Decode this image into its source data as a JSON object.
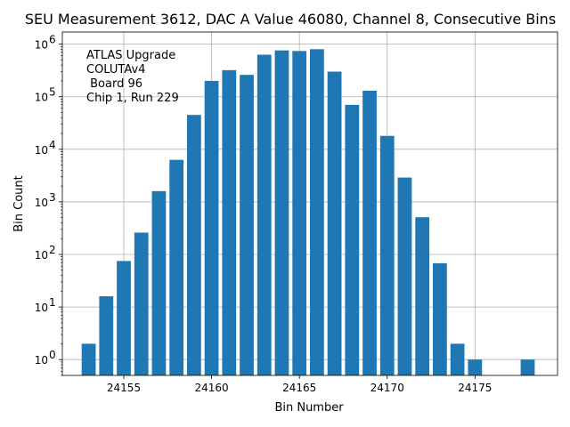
{
  "chart_data": {
    "type": "bar",
    "title": "SEU Measurement 3612, DAC A Value 46080, Channel 8, Consecutive Bins",
    "xlabel": "Bin Number",
    "ylabel": "Bin Count",
    "yscale": "log",
    "grid": true,
    "bar_color": "#1f77b4",
    "x": [
      24153,
      24154,
      24155,
      24156,
      24157,
      24158,
      24159,
      24160,
      24161,
      24162,
      24163,
      24164,
      24165,
      24166,
      24167,
      24168,
      24169,
      24170,
      24171,
      24172,
      24173,
      24174,
      24175,
      24178
    ],
    "values": [
      2,
      16,
      75,
      260,
      1600,
      6300,
      45000,
      200000,
      320000,
      260000,
      630000,
      760000,
      740000,
      800000,
      300000,
      70000,
      130000,
      18000,
      2900,
      510,
      68,
      2,
      1,
      1
    ],
    "xlim": [
      24151.5,
      24179.7
    ],
    "ylim": [
      0.5,
      1700000
    ],
    "x_ticks": [
      24155,
      24160,
      24165,
      24170,
      24175
    ],
    "x_tick_labels": [
      "24155",
      "24160",
      "24165",
      "24170",
      "24175"
    ],
    "y_ticks": [
      1,
      10,
      100,
      1000,
      10000,
      100000,
      1000000
    ],
    "y_tick_base": "10",
    "y_tick_exponents": [
      "0",
      "1",
      "2",
      "3",
      "4",
      "5",
      "6"
    ],
    "annotation": [
      "ATLAS Upgrade",
      "COLUTAv4",
      " Board 96",
      "Chip 1, Run 229"
    ],
    "annotation_position": "top-left"
  }
}
